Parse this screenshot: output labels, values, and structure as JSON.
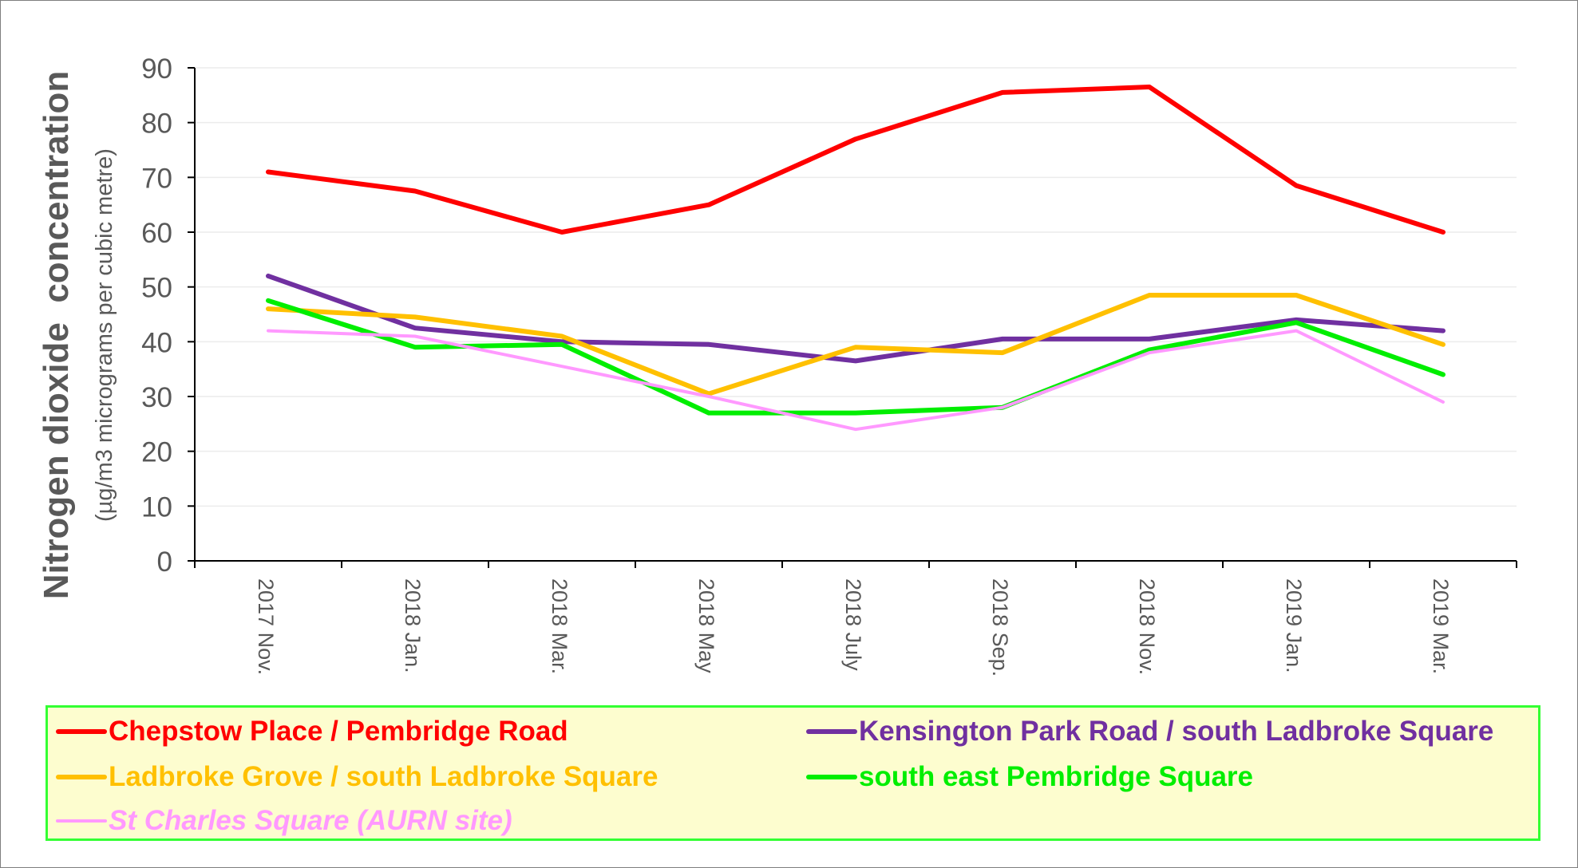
{
  "chart_data": {
    "type": "line",
    "title": "",
    "ylabel": "Nitrogen dioxide  concentration",
    "ylabel_sub": "(µg/m3 micrograms per cubic metre)",
    "xlabel": "",
    "ylim": [
      0,
      90
    ],
    "yticks": [
      0,
      10,
      20,
      30,
      40,
      50,
      60,
      70,
      80,
      90
    ],
    "categories": [
      "2017 Nov.",
      "2018 Jan.",
      "2018 Mar.",
      "2018 May",
      "2018 July",
      "2018 Sep.",
      "2018 Nov.",
      "2019 Jan.",
      "2019 Mar."
    ],
    "grid": true,
    "legend_position": "bottom",
    "series": [
      {
        "name": "Chepstow Place / Pembridge Road",
        "color": "#ff0000",
        "values": [
          71,
          67.5,
          60,
          65,
          77,
          85.5,
          86.5,
          68.5,
          60
        ]
      },
      {
        "name": "Kensington Park Road / south Ladbroke Square",
        "color": "#7030a0",
        "values": [
          52,
          42.5,
          40,
          39.5,
          36.5,
          40.5,
          40.5,
          44,
          42
        ]
      },
      {
        "name": "Ladbroke Grove / south Ladbroke Square",
        "color": "#ffc000",
        "values": [
          46,
          44.5,
          41,
          30.5,
          39,
          38,
          48.5,
          48.5,
          39.5
        ]
      },
      {
        "name": "south east Pembridge Square",
        "color": "#00ee00",
        "values": [
          47.5,
          39,
          39.5,
          27,
          27,
          28,
          38.5,
          43.5,
          34
        ]
      },
      {
        "name": "St Charles Square (AURN site)",
        "color": "#ff99ff",
        "italic": true,
        "values": [
          42,
          41,
          35.5,
          30,
          24,
          28,
          38,
          42,
          29
        ]
      }
    ]
  }
}
